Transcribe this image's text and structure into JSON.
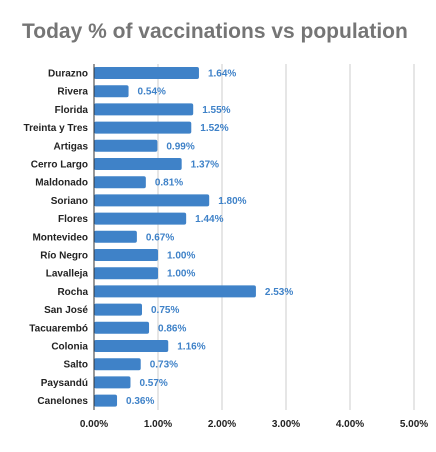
{
  "chart_data": {
    "type": "bar",
    "orientation": "horizontal",
    "title": "Today % of vaccinations vs population",
    "xlabel": "",
    "ylabel": "",
    "categories": [
      "Durazno",
      "Rivera",
      "Florida",
      "Treinta y Tres",
      "Artigas",
      "Cerro Largo",
      "Maldonado",
      "Soriano",
      "Flores",
      "Montevideo",
      "Río Negro",
      "Lavalleja",
      "Rocha",
      "San José",
      "Tacuarembó",
      "Colonia",
      "Salto",
      "Paysandú",
      "Canelones"
    ],
    "values": [
      1.64,
      0.54,
      1.55,
      1.52,
      0.99,
      1.37,
      0.81,
      1.8,
      1.44,
      0.67,
      1.0,
      1.0,
      2.53,
      0.75,
      0.86,
      1.16,
      0.73,
      0.57,
      0.36
    ],
    "value_labels": [
      "1.64%",
      "0.54%",
      "1.55%",
      "1.52%",
      "0.99%",
      "1.37%",
      "0.81%",
      "1.80%",
      "1.44%",
      "0.67%",
      "1.00%",
      "1.00%",
      "2.53%",
      "0.75%",
      "0.86%",
      "1.16%",
      "0.73%",
      "0.57%",
      "0.36%"
    ],
    "x_ticks": [
      0,
      1,
      2,
      3,
      4,
      5
    ],
    "x_tick_labels": [
      "0.00%",
      "1.00%",
      "2.00%",
      "3.00%",
      "4.00%",
      "5.00%"
    ],
    "xlim": [
      0,
      5
    ],
    "grid": true,
    "legend": "none",
    "bar_color": "#3f82c8",
    "label_color": "#3f82c8",
    "grid_color": "#cccccc",
    "title_color": "#757575"
  }
}
